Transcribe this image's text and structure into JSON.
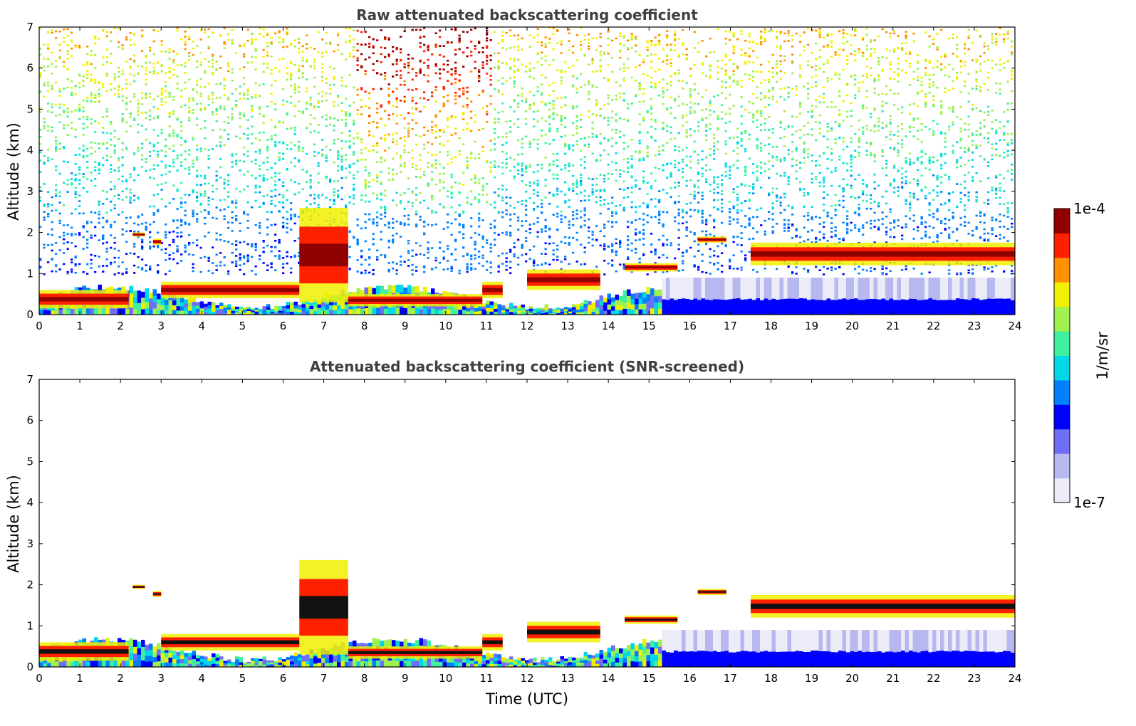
{
  "chart_data": [
    {
      "type": "heatmap",
      "title": "Raw attenuated backscattering coefficient",
      "xlabel": "",
      "ylabel": "Altitude (km)",
      "xlim": [
        0,
        24
      ],
      "ylim": [
        0,
        7
      ],
      "x_ticks": [
        "0",
        "1",
        "2",
        "3",
        "4",
        "5",
        "6",
        "7",
        "8",
        "9",
        "10",
        "11",
        "12",
        "13",
        "14",
        "15",
        "16",
        "17",
        "18",
        "19",
        "20",
        "21",
        "22",
        "23",
        "24"
      ],
      "y_ticks": [
        "0",
        "1",
        "2",
        "3",
        "4",
        "5",
        "6",
        "7"
      ],
      "background_noise": "high at altitude (green to red speckle, strongest 8-11 UTC)",
      "layers": [
        {
          "t0": 0.0,
          "t1": 2.2,
          "h0": 0.15,
          "h1": 0.6,
          "intensity": "high"
        },
        {
          "t0": 2.3,
          "t1": 2.6,
          "h0": 1.9,
          "h1": 2.0,
          "intensity": "high"
        },
        {
          "t0": 2.8,
          "t1": 3.0,
          "h0": 1.7,
          "h1": 1.85,
          "intensity": "high"
        },
        {
          "t0": 3.0,
          "t1": 6.4,
          "h0": 0.4,
          "h1": 0.8,
          "intensity": "high"
        },
        {
          "t0": 6.4,
          "t1": 7.6,
          "h0": 0.3,
          "h1": 2.6,
          "intensity": "high"
        },
        {
          "t0": 7.6,
          "t1": 10.9,
          "h0": 0.2,
          "h1": 0.5,
          "intensity": "high"
        },
        {
          "t0": 10.9,
          "t1": 11.4,
          "h0": 0.4,
          "h1": 0.8,
          "intensity": "high"
        },
        {
          "t0": 12.0,
          "t1": 13.8,
          "h0": 0.6,
          "h1": 1.1,
          "intensity": "high"
        },
        {
          "t0": 14.4,
          "t1": 15.7,
          "h0": 1.05,
          "h1": 1.25,
          "intensity": "high"
        },
        {
          "t0": 16.2,
          "t1": 16.9,
          "h0": 1.75,
          "h1": 1.9,
          "intensity": "high"
        },
        {
          "t0": 17.5,
          "t1": 24.0,
          "h0": 1.2,
          "h1": 1.75,
          "intensity": "high"
        }
      ]
    },
    {
      "type": "heatmap",
      "title": "Attenuated backscattering coefficient (SNR-screened)",
      "xlabel": "Time (UTC)",
      "ylabel": "Altitude (km)",
      "xlim": [
        0,
        24
      ],
      "ylim": [
        0,
        7
      ],
      "x_ticks": [
        "0",
        "1",
        "2",
        "3",
        "4",
        "5",
        "6",
        "7",
        "8",
        "9",
        "10",
        "11",
        "12",
        "13",
        "14",
        "15",
        "16",
        "17",
        "18",
        "19",
        "20",
        "21",
        "22",
        "23",
        "24"
      ],
      "y_ticks": [
        "0",
        "1",
        "2",
        "3",
        "4",
        "5",
        "6",
        "7"
      ],
      "background_noise": "screened (white above boundary layer)",
      "layers": [
        {
          "t0": 0.0,
          "t1": 2.2,
          "h0": 0.15,
          "h1": 0.6,
          "intensity": "high"
        },
        {
          "t0": 2.3,
          "t1": 2.6,
          "h0": 1.9,
          "h1": 2.0,
          "intensity": "high"
        },
        {
          "t0": 2.8,
          "t1": 3.0,
          "h0": 1.7,
          "h1": 1.85,
          "intensity": "high"
        },
        {
          "t0": 3.0,
          "t1": 6.4,
          "h0": 0.4,
          "h1": 0.8,
          "intensity": "high"
        },
        {
          "t0": 6.4,
          "t1": 7.6,
          "h0": 0.3,
          "h1": 2.6,
          "intensity": "high"
        },
        {
          "t0": 7.6,
          "t1": 10.9,
          "h0": 0.2,
          "h1": 0.5,
          "intensity": "high"
        },
        {
          "t0": 10.9,
          "t1": 11.4,
          "h0": 0.4,
          "h1": 0.8,
          "intensity": "high"
        },
        {
          "t0": 12.0,
          "t1": 13.8,
          "h0": 0.6,
          "h1": 1.1,
          "intensity": "high"
        },
        {
          "t0": 14.4,
          "t1": 15.7,
          "h0": 1.05,
          "h1": 1.25,
          "intensity": "high"
        },
        {
          "t0": 16.2,
          "t1": 16.9,
          "h0": 1.75,
          "h1": 1.9,
          "intensity": "high"
        },
        {
          "t0": 17.5,
          "t1": 24.0,
          "h0": 1.2,
          "h1": 1.75,
          "intensity": "high"
        }
      ]
    }
  ],
  "colorbar": {
    "label": "1/m/sr",
    "max_label": "1e-4",
    "min_label": "1e-7",
    "colormap": "jet (white at minimum)",
    "colors": [
      "#ecebf8",
      "#b8b8f0",
      "#6f6ff5",
      "#0000ff",
      "#0080ff",
      "#00d8e8",
      "#40f0a0",
      "#a0f050",
      "#f0f000",
      "#ff9000",
      "#ff2000",
      "#900000"
    ]
  }
}
